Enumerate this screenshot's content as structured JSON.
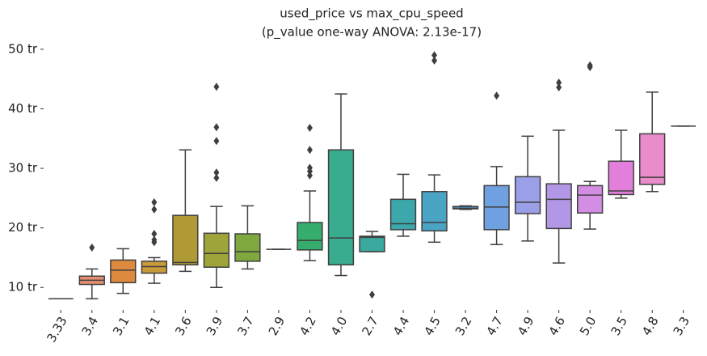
{
  "chart_data": {
    "type": "box",
    "title": "used_price vs max_cpu_speed",
    "subtitle": "(p_value one-way ANOVA: 2.13e-17)",
    "categories": [
      "3.33",
      "3.4",
      "3.1",
      "4.1",
      "3.6",
      "3.9",
      "3.7",
      "2.9",
      "4.2",
      "4.0",
      "2.7",
      "4.4",
      "4.5",
      "3.2",
      "4.7",
      "4.9",
      "4.6",
      "5.0",
      "3.5",
      "4.8",
      "3.3"
    ],
    "colors": [
      "#f77189",
      "#e58e71",
      "#dd8a3e",
      "#c79a3a",
      "#b09a35",
      "#9ea33a",
      "#7fa83f",
      "#4fae4a",
      "#36ad6c",
      "#39ab8f",
      "#3aa99e",
      "#3ca8ab",
      "#4aa5c4",
      "#48a2d6",
      "#6fa0e0",
      "#9b9fe8",
      "#b297e6",
      "#d38de2",
      "#e47edc",
      "#e98cca",
      "#f28ab1"
    ],
    "stats": [
      {
        "whislo": 8.1,
        "q1": 8.1,
        "med": 8.1,
        "q3": 8.1,
        "whishi": 8.1,
        "fliers": []
      },
      {
        "whislo": 8.1,
        "q1": 10.5,
        "med": 11.2,
        "q3": 11.9,
        "whishi": 13.1,
        "fliers": [
          16.7
        ]
      },
      {
        "whislo": 9.0,
        "q1": 10.8,
        "med": 12.9,
        "q3": 14.6,
        "whishi": 16.5,
        "fliers": []
      },
      {
        "whislo": 10.7,
        "q1": 12.4,
        "med": 13.5,
        "q3": 14.4,
        "whishi": 15.0,
        "fliers": [
          17.6,
          18.0,
          19.0,
          23.1,
          24.3
        ]
      },
      {
        "whislo": 12.7,
        "q1": 13.8,
        "med": 14.2,
        "q3": 22.1,
        "whishi": 33.1,
        "fliers": []
      },
      {
        "whislo": 10.0,
        "q1": 13.4,
        "med": 15.7,
        "q3": 19.1,
        "whishi": 23.6,
        "fliers": [
          28.4,
          29.3,
          34.6,
          36.9,
          43.7
        ]
      },
      {
        "whislo": 13.1,
        "q1": 14.4,
        "med": 16.0,
        "q3": 19.0,
        "whishi": 23.7,
        "fliers": []
      },
      {
        "whislo": 16.4,
        "q1": 16.4,
        "med": 16.4,
        "q3": 16.4,
        "whishi": 16.4,
        "fliers": []
      },
      {
        "whislo": 14.5,
        "q1": 16.3,
        "med": 17.9,
        "q3": 20.9,
        "whishi": 26.2,
        "fliers": [
          28.8,
          29.5,
          30.1,
          33.1,
          36.8
        ]
      },
      {
        "whislo": 12.0,
        "q1": 13.8,
        "med": 18.3,
        "q3": 33.1,
        "whishi": 42.5,
        "fliers": []
      },
      {
        "whislo": 16.0,
        "q1": 16.0,
        "med": 18.4,
        "q3": 18.6,
        "whishi": 19.4,
        "fliers": [
          8.8
        ]
      },
      {
        "whislo": 18.6,
        "q1": 19.7,
        "med": 20.7,
        "q3": 24.8,
        "whishi": 29.0,
        "fliers": []
      },
      {
        "whislo": 17.6,
        "q1": 19.5,
        "med": 20.9,
        "q3": 26.1,
        "whishi": 28.9,
        "fliers": [
          48.1,
          49.0
        ]
      },
      {
        "whislo": 23.1,
        "q1": 23.2,
        "med": 23.3,
        "q3": 23.6,
        "whishi": 23.7,
        "fliers": []
      },
      {
        "whislo": 17.2,
        "q1": 19.7,
        "med": 23.5,
        "q3": 27.1,
        "whishi": 30.3,
        "fliers": [
          42.2
        ]
      },
      {
        "whislo": 17.8,
        "q1": 22.4,
        "med": 24.3,
        "q3": 28.6,
        "whishi": 35.4,
        "fliers": []
      },
      {
        "whislo": 14.1,
        "q1": 19.9,
        "med": 24.8,
        "q3": 27.4,
        "whishi": 36.4,
        "fliers": [
          43.6,
          44.4
        ]
      },
      {
        "whislo": 19.8,
        "q1": 22.5,
        "med": 25.5,
        "q3": 27.1,
        "whishi": 27.8,
        "fliers": [
          47.0,
          47.3
        ]
      },
      {
        "whislo": 25.0,
        "q1": 25.6,
        "med": 26.2,
        "q3": 31.2,
        "whishi": 36.4,
        "fliers": []
      },
      {
        "whislo": 26.1,
        "q1": 27.3,
        "med": 28.5,
        "q3": 35.8,
        "whishi": 42.8,
        "fliers": []
      },
      {
        "whislo": 37.1,
        "q1": 37.1,
        "med": 37.1,
        "q3": 37.1,
        "whishi": 37.1,
        "fliers": []
      }
    ],
    "ylim": [
      6.5,
      50.8
    ],
    "yticks": [
      {
        "value": 10,
        "label": "10 tr"
      },
      {
        "value": 20,
        "label": "20 tr"
      },
      {
        "value": 30,
        "label": "30 tr"
      },
      {
        "value": 40,
        "label": "40 tr"
      },
      {
        "value": 50,
        "label": "50 tr"
      }
    ]
  }
}
